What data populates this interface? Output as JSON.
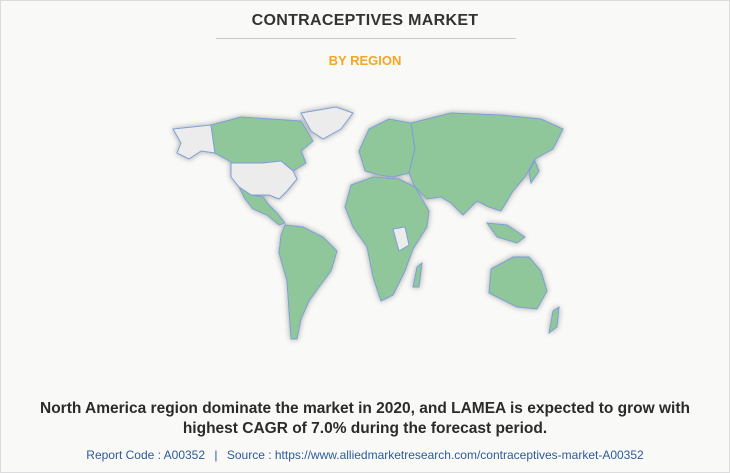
{
  "header": {
    "title": "CONTRACEPTIVES MARKET",
    "subtitle": "BY REGION"
  },
  "description": {
    "lines": [
      "North America region dominate the market in 2020, and LAMEA is expected to grow with",
      "highest CAGR of 7.0% during the forecast period."
    ]
  },
  "footer": {
    "report_code": "Report Code : A00352",
    "separator": "|",
    "source": "Source : https://www.alliedmarketresearch.com/contraceptives-market-A00352"
  }
}
